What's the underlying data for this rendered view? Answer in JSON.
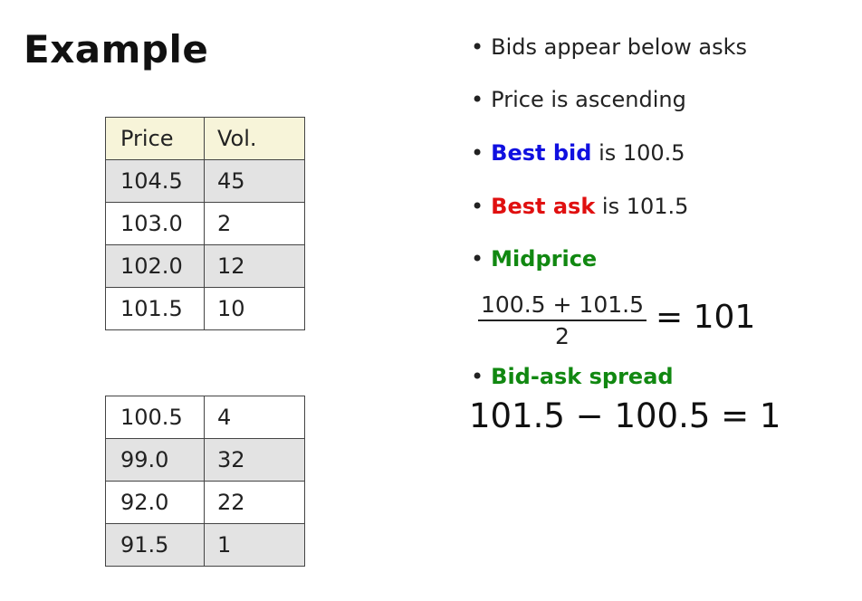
{
  "title": "Example",
  "asks_table": {
    "headers": [
      "Price",
      "Vol."
    ],
    "rows": [
      [
        "104.5",
        "45"
      ],
      [
        "103.0",
        "2"
      ],
      [
        "102.0",
        "12"
      ],
      [
        "101.5",
        "10"
      ]
    ]
  },
  "bids_table": {
    "rows": [
      [
        "100.5",
        "4"
      ],
      [
        "99.0",
        "32"
      ],
      [
        "92.0",
        "22"
      ],
      [
        "91.5",
        "1"
      ]
    ]
  },
  "bullets": {
    "b1": "Bids appear below asks",
    "b2": "Price is ascending",
    "b3_label": "Best bid",
    "b3_rest": " is 100.5",
    "b4_label": "Best ask",
    "b4_rest": " is 101.5",
    "b5_label": "Midprice",
    "b6_label": "Bid-ask spread"
  },
  "midprice_formula": {
    "numerator": "100.5 + 101.5",
    "denominator": "2",
    "result": "= 101"
  },
  "spread_formula": "101.5 − 100.5 = 1",
  "colors": {
    "best_bid": "#1010e0",
    "best_ask": "#e01010",
    "green_labels": "#118811",
    "header_row": "#f7f4d9",
    "grey_row": "#e3e3e3"
  }
}
